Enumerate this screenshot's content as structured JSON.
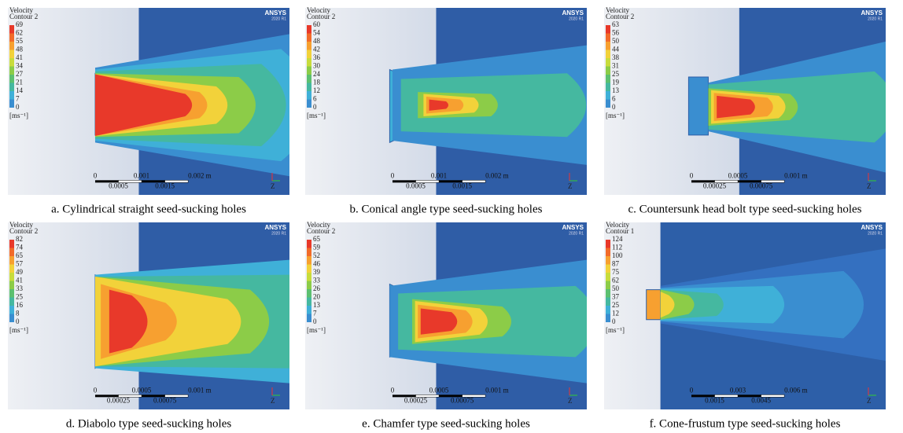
{
  "figure": {
    "panels": [
      {
        "legend_title": "Velocity",
        "legend_subtitle": "Contour 2",
        "levels": [
          69,
          62,
          55,
          48,
          41,
          34,
          27,
          21,
          14,
          7,
          0
        ],
        "unit": "[ms⁻¹]",
        "logo": "ANSYS",
        "version": "2020 R1",
        "scale_top": [
          "0",
          "0.001",
          "0.002 m"
        ],
        "scale_bottom": [
          "0.0005",
          "0.0015"
        ],
        "triad_label": "Z",
        "caption": "a. Cylindrical straight seed-sucking holes"
      },
      {
        "legend_title": "Velocity",
        "legend_subtitle": "Contour 2",
        "levels": [
          60,
          54,
          48,
          42,
          36,
          30,
          24,
          18,
          12,
          6,
          0
        ],
        "unit": "[ms⁻¹]",
        "logo": "ANSYS",
        "version": "2020 R1",
        "scale_top": [
          "0",
          "0.001",
          "0.002 m"
        ],
        "scale_bottom": [
          "0.0005",
          "0.0015"
        ],
        "triad_label": "Z",
        "caption": "b. Conical angle type seed-sucking holes"
      },
      {
        "legend_title": "Velocity",
        "legend_subtitle": "Contour 2",
        "levels": [
          63,
          56,
          50,
          44,
          38,
          31,
          25,
          19,
          13,
          6,
          0
        ],
        "unit": "[ms⁻¹]",
        "logo": "ANSYS",
        "version": "2020 R1",
        "scale_top": [
          "0",
          "0.0005",
          "0.001 m"
        ],
        "scale_bottom": [
          "0.00025",
          "0.00075"
        ],
        "triad_label": "Z",
        "caption": "c. Countersunk head bolt type seed-sucking holes"
      },
      {
        "legend_title": "Velocity",
        "legend_subtitle": "Contour 2",
        "levels": [
          82,
          74,
          65,
          57,
          49,
          41,
          33,
          25,
          16,
          8,
          0
        ],
        "unit": "[ms⁻¹]",
        "logo": "ANSYS",
        "version": "2020 R1",
        "scale_top": [
          "0",
          "0.0005",
          "0.001 m"
        ],
        "scale_bottom": [
          "0.00025",
          "0.00075"
        ],
        "triad_label": "Z",
        "caption": "d. Diabolo type seed-sucking holes"
      },
      {
        "legend_title": "Velocity",
        "legend_subtitle": "Contour 2",
        "levels": [
          65,
          59,
          52,
          46,
          39,
          33,
          26,
          20,
          13,
          7,
          0
        ],
        "unit": "[ms⁻¹]",
        "logo": "ANSYS",
        "version": "2020 R1",
        "scale_top": [
          "0",
          "0.0005",
          "0.001 m"
        ],
        "scale_bottom": [
          "0.00025",
          "0.00075"
        ],
        "triad_label": "Z",
        "caption": "e. Chamfer type seed-sucking holes"
      },
      {
        "legend_title": "Velocity",
        "legend_subtitle": "Contour 1",
        "levels": [
          124,
          112,
          100,
          87,
          75,
          62,
          50,
          37,
          25,
          12,
          0
        ],
        "unit": "[ms⁻¹]",
        "logo": "ANSYS",
        "version": "2020 R1",
        "scale_top": [
          "0",
          "0.003",
          "0.006 m"
        ],
        "scale_bottom": [
          "0.0015",
          "0.0045"
        ],
        "triad_label": "Z",
        "caption": "f. Cone-frustum type seed-sucking holes"
      }
    ]
  }
}
